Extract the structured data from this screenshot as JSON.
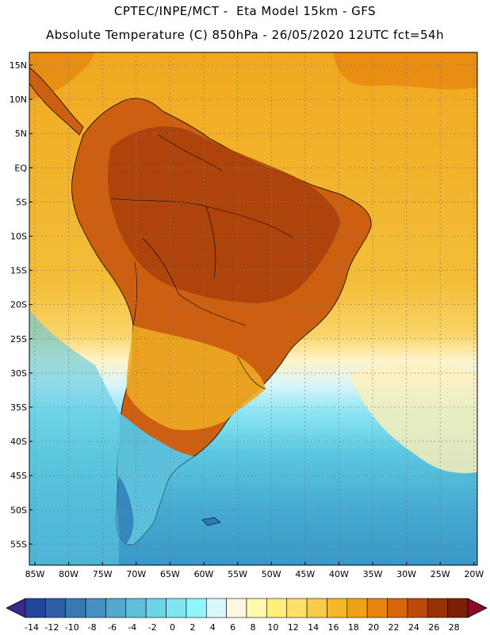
{
  "header": {
    "line1": "CPTEC/INPE/MCT -  Eta Model 15km - GFS",
    "line2": "Absolute Temperature (C) 850hPa - 26/05/2020 12UTC fct=54h"
  },
  "axes": {
    "lat_labels": [
      "15N",
      "10N",
      "5N",
      "EQ",
      "5S",
      "10S",
      "15S",
      "20S",
      "25S",
      "30S",
      "35S",
      "40S",
      "45S",
      "50S",
      "55S"
    ],
    "lon_labels": [
      "85W",
      "80W",
      "75W",
      "70W",
      "65W",
      "60W",
      "55W",
      "50W",
      "45W",
      "40W",
      "35W",
      "30W",
      "25W",
      "20W"
    ]
  },
  "colorbar": {
    "labels": [
      "-14",
      "-12",
      "-10",
      "-8",
      "-6",
      "-4",
      "-2",
      "0",
      "2",
      "4",
      "6",
      "8",
      "10",
      "12",
      "14",
      "16",
      "18",
      "20",
      "22",
      "24",
      "26",
      "28"
    ],
    "colors": [
      "#22449a",
      "#2e5ea8",
      "#3a78b4",
      "#4690c2",
      "#52a8ce",
      "#5fc0dc",
      "#6dd4e8",
      "#7fe6f2",
      "#8ef6fc",
      "#d8f6fc",
      "#fff8e0",
      "#fffab0",
      "#fff07a",
      "#fce06a",
      "#f8cc4a",
      "#f4b82a",
      "#eea214",
      "#e88410",
      "#d8640c",
      "#bc4a08",
      "#9a3006",
      "#7a1e06"
    ],
    "arrow_low": "#3a2a8a",
    "arrow_high": "#8a0a2a"
  },
  "map_colors": {
    "ocean_north": "#f2b22a",
    "ocean_north_mid": "#f6c040",
    "ocean_band": "#fff3c8",
    "ocean_band2": "#c8f0f8",
    "ocean_cold": "#5cc8e0",
    "ocean_colder": "#44a8d0",
    "land_hot": "#c85a10",
    "land_hotter": "#a8400a",
    "land_warm": "#e08a18",
    "land_mild": "#eeaa22",
    "land_cold": "#50b4d8",
    "land_coldest": "#2e78b8"
  }
}
